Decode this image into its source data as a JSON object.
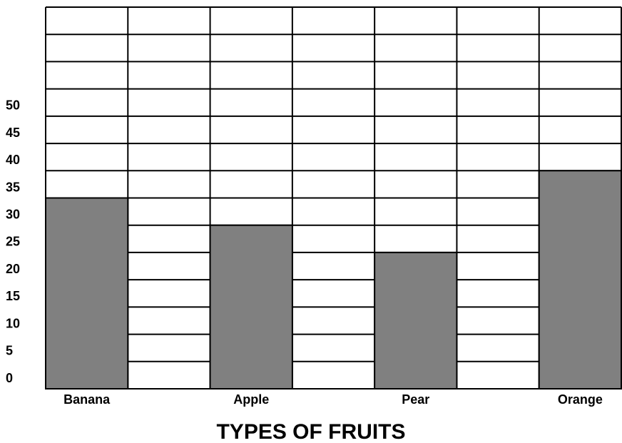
{
  "chart_data": {
    "type": "bar",
    "xlabel": "TYPES OF FRUITS",
    "categories": [
      "Banana",
      null,
      "Apple",
      null,
      "Pear",
      null,
      "Orange"
    ],
    "values": [
      35,
      null,
      30,
      null,
      25,
      null,
      40
    ],
    "color": "#808080",
    "ylim": [
      0,
      70
    ],
    "yticks": [
      0,
      5,
      10,
      15,
      20,
      25,
      30,
      35,
      40,
      45,
      50
    ],
    "grid": true
  }
}
